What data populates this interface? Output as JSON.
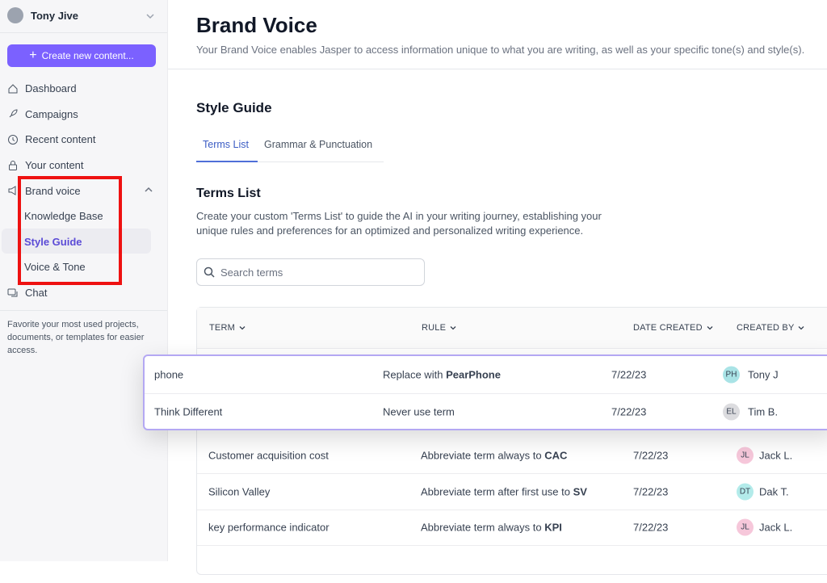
{
  "sidebar": {
    "user": "Tony Jive",
    "create_button": "Create new content...",
    "nav": [
      "Dashboard",
      "Campaigns",
      "Recent content",
      "Your content",
      "Brand voice"
    ],
    "sub_nav": [
      "Knowledge Base",
      "Style Guide",
      "Voice & Tone"
    ],
    "chat": "Chat",
    "note": "Favorite your most used projects, documents, or templates for easier access."
  },
  "header": {
    "title": "Brand Voice",
    "subtitle": "Your Brand Voice enables Jasper to access information unique to what you are writing, as well as your specific tone(s) and style(s)."
  },
  "style_guide": {
    "title": "Style Guide",
    "tabs": [
      "Terms List",
      "Grammar & Punctuation"
    ]
  },
  "terms_list": {
    "title": "Terms List",
    "description": "Create your custom 'Terms List' to guide the AI in your writing journey, establishing your unique rules and preferences for an optimized and personalized writing experience.",
    "search_placeholder": "Search terms",
    "columns": [
      "TERM",
      "RULE",
      "DATE CREATED",
      "CREATED BY"
    ],
    "popup_rows": [
      {
        "term": "phone",
        "rule": {
          "text": "Replace with",
          "bold": "PearPhone"
        },
        "date": "7/22/23",
        "initials": "PH",
        "name": "Tony J"
      },
      {
        "term": "Think Different",
        "rule": {
          "text": "Never use term"
        },
        "date": "7/22/23",
        "initials": "EL",
        "name": "Tim B."
      }
    ],
    "rows": [
      {
        "term": "Customer acquisition cost",
        "rule": {
          "text": "Abbreviate term always to",
          "bold": "CAC"
        },
        "date": "7/22/23",
        "initials": "JL",
        "name": "Jack L."
      },
      {
        "term": "Silicon Valley",
        "rule": {
          "text": "Abbreviate term after first use to",
          "bold": "SV"
        },
        "date": "7/22/23",
        "initials": "DT",
        "name": "Dak T."
      },
      {
        "term": "key performance indicator",
        "rule": {
          "text": "Abbreviate term always to",
          "bold": "KPI"
        },
        "date": "7/22/23",
        "initials": "JL",
        "name": "Jack L."
      }
    ]
  }
}
